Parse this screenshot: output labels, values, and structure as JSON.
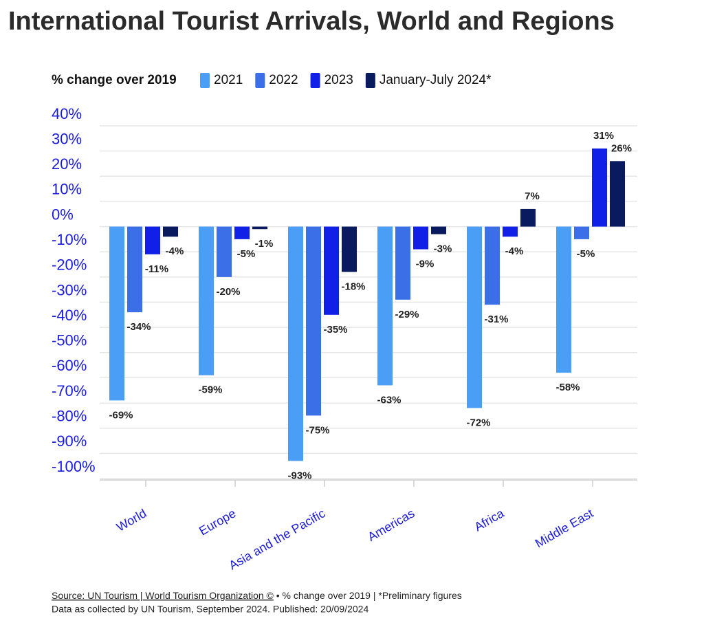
{
  "chart_data": {
    "type": "bar",
    "title": "International Tourist Arrivals, World and Regions",
    "legend_title": "% change over 2019",
    "categories": [
      "World",
      "Europe",
      "Asia and the Pacific",
      "Americas",
      "Africa",
      "Middle East"
    ],
    "series": [
      {
        "name": "2021",
        "color": "#4a9ef5",
        "values": [
          -69,
          -59,
          -93,
          -63,
          -72,
          -58
        ],
        "value_labels": [
          "-69%",
          "-59%",
          "-93%",
          "-63%",
          "-72%",
          "-58%"
        ]
      },
      {
        "name": "2022",
        "color": "#3a6fe8",
        "values": [
          -34,
          -20,
          -75,
          -29,
          -31,
          -5
        ],
        "value_labels": [
          "-34%",
          "-20%",
          "-75%",
          "-29%",
          "-31%",
          "-5%"
        ]
      },
      {
        "name": "2023",
        "color": "#1020e6",
        "values": [
          -11,
          -5,
          -35,
          -9,
          -4,
          31
        ],
        "value_labels": [
          "-11%",
          "-5%",
          "-35%",
          "-9%",
          "-4%",
          "31%"
        ]
      },
      {
        "name": "January-July 2024*",
        "color": "#0a1a5e",
        "values": [
          -4,
          -1,
          -18,
          -3,
          7,
          26
        ],
        "value_labels": [
          "-4%",
          "-1%",
          "-18%",
          "-3%",
          "7%",
          "26%"
        ]
      }
    ],
    "ylim": [
      -100,
      40
    ],
    "yticks": [
      {
        "value": 40,
        "label": "40%"
      },
      {
        "value": 30,
        "label": "30%"
      },
      {
        "value": 20,
        "label": "20%"
      },
      {
        "value": 10,
        "label": "10%"
      },
      {
        "value": 0,
        "label": "0%"
      },
      {
        "value": -10,
        "label": "-10%"
      },
      {
        "value": -20,
        "label": "-20%"
      },
      {
        "value": -30,
        "label": "-30%"
      },
      {
        "value": -40,
        "label": "-40%"
      },
      {
        "value": -50,
        "label": "-50%"
      },
      {
        "value": -60,
        "label": "-60%"
      },
      {
        "value": -70,
        "label": "-70%"
      },
      {
        "value": -80,
        "label": "-80%"
      },
      {
        "value": -90,
        "label": "-90%"
      },
      {
        "value": -100,
        "label": "-100%"
      }
    ],
    "grid": true,
    "source": "Source: UN Tourism | World Tourism Organization ©",
    "source_note": "• % change over 2019 | *Preliminary figures",
    "footnote": "Data as collected by UN Tourism, September 2024. Published: 20/09/2024"
  }
}
